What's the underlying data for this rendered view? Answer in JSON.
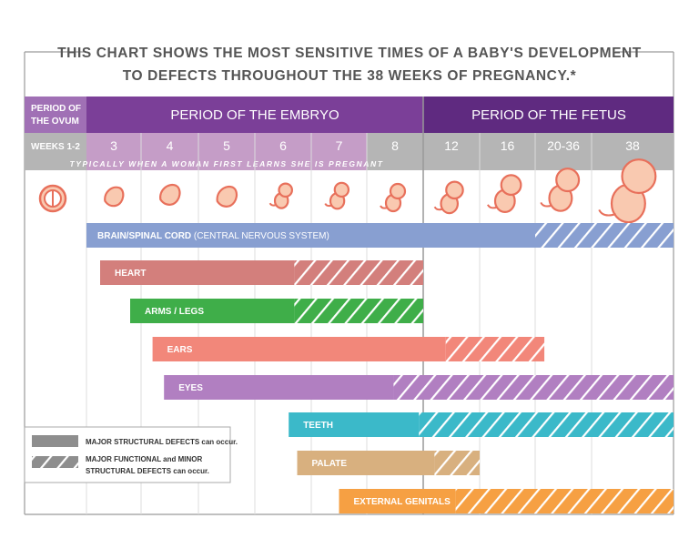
{
  "chart_data": {
    "type": "gantt",
    "title_lines": [
      "THIS CHART SHOWS THE MOST SENSITIVE TIMES OF A BABY'S DEVELOPMENT",
      "TO DEFECTS THROUGHOUT THE 38 WEEKS OF PREGNANCY.*"
    ],
    "periods": [
      {
        "label_lines": [
          "PERIOD OF",
          "THE OVUM"
        ],
        "color": "#a070b5"
      },
      {
        "label": "PERIOD OF THE EMBRYO",
        "color": "#7b3f98"
      },
      {
        "label": "PERIOD OF THE FETUS",
        "color": "#5f2a80"
      }
    ],
    "weeks_label": "WEEKS 1-2",
    "week_columns": [
      "3",
      "4",
      "5",
      "6",
      "7",
      "8",
      "12",
      "16",
      "20-36",
      "38"
    ],
    "pregnant_note": "TYPICALLY WHEN A WOMAN FIRST LEARNS SHE IS PREGNANT",
    "x_unit": "weeks of pregnancy",
    "series": [
      {
        "name": "BRAIN/SPINAL CORD",
        "sub": "(CENTRAL NERVOUS SYSTEM)",
        "start": 3,
        "major_end": 20,
        "end": 38,
        "color": "#889fd1"
      },
      {
        "name": "HEART",
        "start": 3.25,
        "major_end": 6.7,
        "end": 12,
        "color": "#d37f7c"
      },
      {
        "name": "ARMS / LEGS",
        "start": 3.8,
        "major_end": 6.7,
        "end": 12,
        "color": "#3fae49"
      },
      {
        "name": "EARS",
        "start": 4.2,
        "major_end": 13.6,
        "end": 22.6,
        "color": "#f2877a"
      },
      {
        "name": "EYES",
        "start": 4.4,
        "major_end": 9.9,
        "end": 38,
        "color": "#b17fc1"
      },
      {
        "name": "TEETH",
        "start": 6.6,
        "major_end": 11.7,
        "end": 38,
        "color": "#3bb9c9"
      },
      {
        "name": "PALATE",
        "start": 6.75,
        "major_end": 12.8,
        "end": 16,
        "color": "#d8b07f"
      },
      {
        "name": "EXTERNAL GENITALS",
        "start": 7.5,
        "major_end": 14.3,
        "end": 38,
        "color": "#f6a043"
      }
    ],
    "legend": {
      "solid": "MAJOR STRUCTURAL DEFECTS can occur.",
      "hatched_lines": [
        "MAJOR FUNCTIONAL and MINOR",
        "STRUCTURAL DEFECTS can occur."
      ]
    },
    "icons": [
      "ovum-icon",
      "embryo-icon",
      "fetus-icon"
    ]
  }
}
